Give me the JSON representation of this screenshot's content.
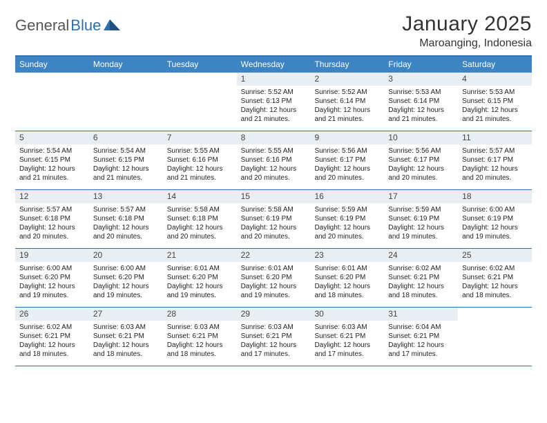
{
  "brand": {
    "part1": "General",
    "part2": "Blue"
  },
  "title": "January 2025",
  "location": "Maroanging, Indonesia",
  "colors": {
    "header_bar": "#3d84c4",
    "accent_line": "#2e6fae",
    "daynum_bg": "#e9eef2",
    "text": "#222222",
    "bg": "#ffffff"
  },
  "dow": [
    "Sunday",
    "Monday",
    "Tuesday",
    "Wednesday",
    "Thursday",
    "Friday",
    "Saturday"
  ],
  "weeks": [
    [
      {
        "n": "",
        "sr": "",
        "ss": "",
        "dl": ""
      },
      {
        "n": "",
        "sr": "",
        "ss": "",
        "dl": ""
      },
      {
        "n": "",
        "sr": "",
        "ss": "",
        "dl": ""
      },
      {
        "n": "1",
        "sr": "5:52 AM",
        "ss": "6:13 PM",
        "dl": "12 hours and 21 minutes."
      },
      {
        "n": "2",
        "sr": "5:52 AM",
        "ss": "6:14 PM",
        "dl": "12 hours and 21 minutes."
      },
      {
        "n": "3",
        "sr": "5:53 AM",
        "ss": "6:14 PM",
        "dl": "12 hours and 21 minutes."
      },
      {
        "n": "4",
        "sr": "5:53 AM",
        "ss": "6:15 PM",
        "dl": "12 hours and 21 minutes."
      }
    ],
    [
      {
        "n": "5",
        "sr": "5:54 AM",
        "ss": "6:15 PM",
        "dl": "12 hours and 21 minutes."
      },
      {
        "n": "6",
        "sr": "5:54 AM",
        "ss": "6:15 PM",
        "dl": "12 hours and 21 minutes."
      },
      {
        "n": "7",
        "sr": "5:55 AM",
        "ss": "6:16 PM",
        "dl": "12 hours and 21 minutes."
      },
      {
        "n": "8",
        "sr": "5:55 AM",
        "ss": "6:16 PM",
        "dl": "12 hours and 20 minutes."
      },
      {
        "n": "9",
        "sr": "5:56 AM",
        "ss": "6:17 PM",
        "dl": "12 hours and 20 minutes."
      },
      {
        "n": "10",
        "sr": "5:56 AM",
        "ss": "6:17 PM",
        "dl": "12 hours and 20 minutes."
      },
      {
        "n": "11",
        "sr": "5:57 AM",
        "ss": "6:17 PM",
        "dl": "12 hours and 20 minutes."
      }
    ],
    [
      {
        "n": "12",
        "sr": "5:57 AM",
        "ss": "6:18 PM",
        "dl": "12 hours and 20 minutes."
      },
      {
        "n": "13",
        "sr": "5:57 AM",
        "ss": "6:18 PM",
        "dl": "12 hours and 20 minutes."
      },
      {
        "n": "14",
        "sr": "5:58 AM",
        "ss": "6:18 PM",
        "dl": "12 hours and 20 minutes."
      },
      {
        "n": "15",
        "sr": "5:58 AM",
        "ss": "6:19 PM",
        "dl": "12 hours and 20 minutes."
      },
      {
        "n": "16",
        "sr": "5:59 AM",
        "ss": "6:19 PM",
        "dl": "12 hours and 20 minutes."
      },
      {
        "n": "17",
        "sr": "5:59 AM",
        "ss": "6:19 PM",
        "dl": "12 hours and 19 minutes."
      },
      {
        "n": "18",
        "sr": "6:00 AM",
        "ss": "6:19 PM",
        "dl": "12 hours and 19 minutes."
      }
    ],
    [
      {
        "n": "19",
        "sr": "6:00 AM",
        "ss": "6:20 PM",
        "dl": "12 hours and 19 minutes."
      },
      {
        "n": "20",
        "sr": "6:00 AM",
        "ss": "6:20 PM",
        "dl": "12 hours and 19 minutes."
      },
      {
        "n": "21",
        "sr": "6:01 AM",
        "ss": "6:20 PM",
        "dl": "12 hours and 19 minutes."
      },
      {
        "n": "22",
        "sr": "6:01 AM",
        "ss": "6:20 PM",
        "dl": "12 hours and 19 minutes."
      },
      {
        "n": "23",
        "sr": "6:01 AM",
        "ss": "6:20 PM",
        "dl": "12 hours and 18 minutes."
      },
      {
        "n": "24",
        "sr": "6:02 AM",
        "ss": "6:21 PM",
        "dl": "12 hours and 18 minutes."
      },
      {
        "n": "25",
        "sr": "6:02 AM",
        "ss": "6:21 PM",
        "dl": "12 hours and 18 minutes."
      }
    ],
    [
      {
        "n": "26",
        "sr": "6:02 AM",
        "ss": "6:21 PM",
        "dl": "12 hours and 18 minutes."
      },
      {
        "n": "27",
        "sr": "6:03 AM",
        "ss": "6:21 PM",
        "dl": "12 hours and 18 minutes."
      },
      {
        "n": "28",
        "sr": "6:03 AM",
        "ss": "6:21 PM",
        "dl": "12 hours and 18 minutes."
      },
      {
        "n": "29",
        "sr": "6:03 AM",
        "ss": "6:21 PM",
        "dl": "12 hours and 17 minutes."
      },
      {
        "n": "30",
        "sr": "6:03 AM",
        "ss": "6:21 PM",
        "dl": "12 hours and 17 minutes."
      },
      {
        "n": "31",
        "sr": "6:04 AM",
        "ss": "6:21 PM",
        "dl": "12 hours and 17 minutes."
      },
      {
        "n": "",
        "sr": "",
        "ss": "",
        "dl": ""
      }
    ]
  ],
  "labels": {
    "sunrise": "Sunrise:",
    "sunset": "Sunset:",
    "daylight": "Daylight:"
  }
}
